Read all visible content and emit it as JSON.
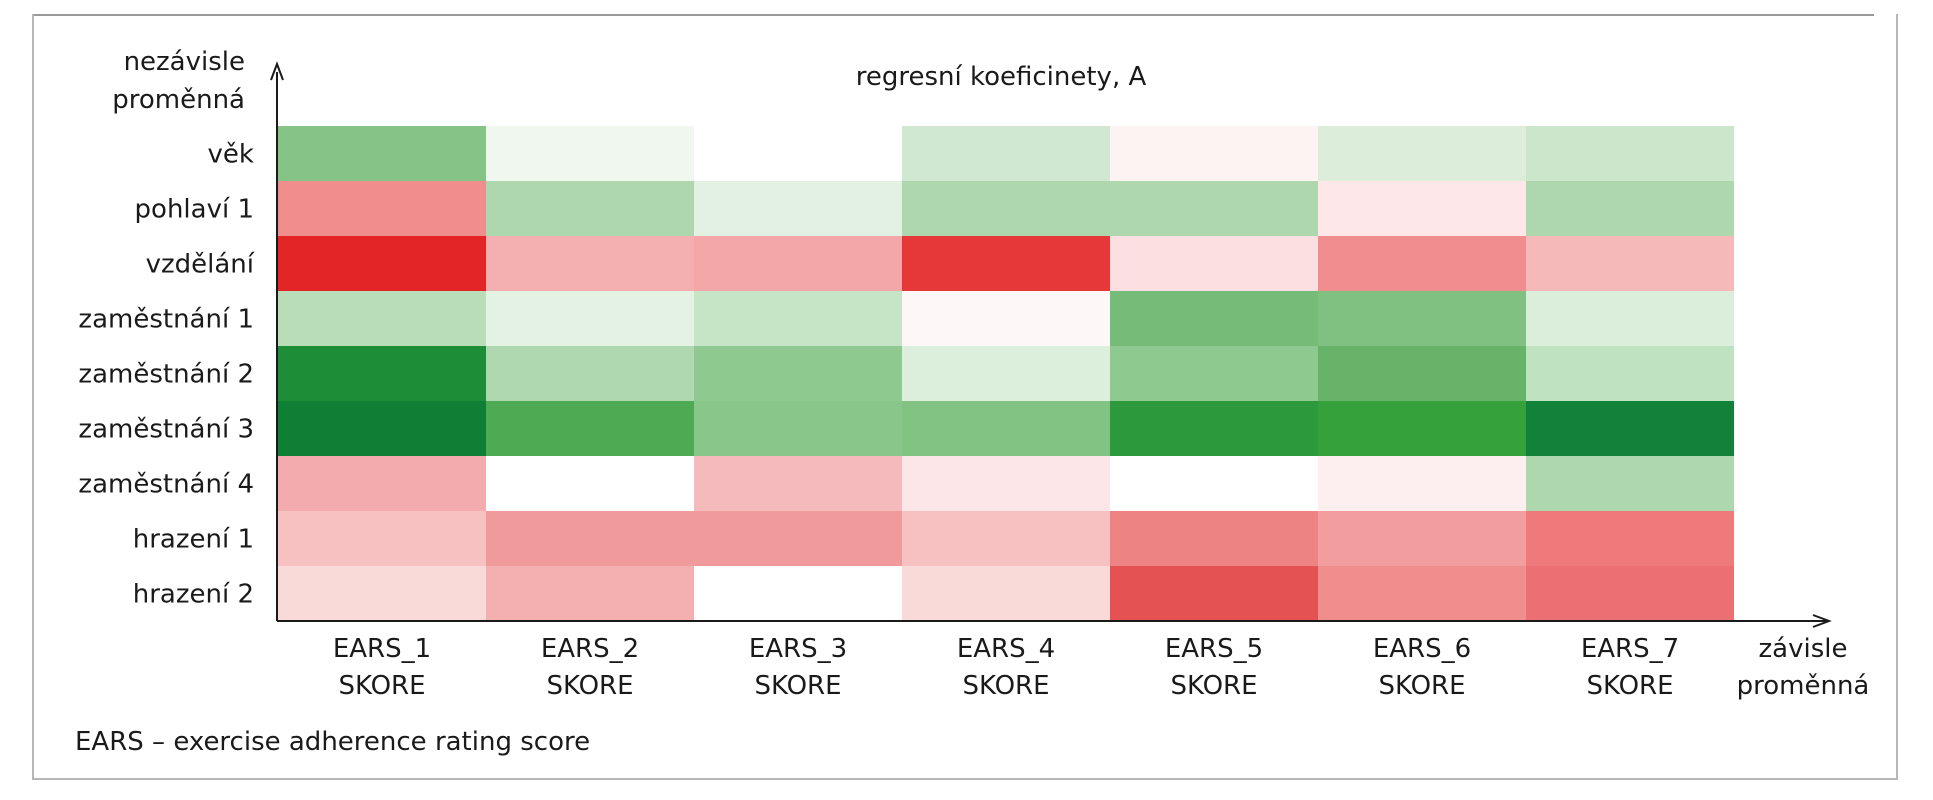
{
  "chart_data": {
    "type": "heatmap",
    "title": "regresní koeficinety, A",
    "ylabel": [
      "nezávisle",
      "proměnná"
    ],
    "xlabel": [
      "závisle",
      "proměnná"
    ],
    "rows": [
      "věk",
      "pohlaví 1",
      "vzdělání",
      "zaměstnání 1",
      "zaměstnání 2",
      "zaměstnání 3",
      "zaměstnání 4",
      "hrazení 1",
      "hrazení 2"
    ],
    "columns": [
      {
        "line1": "EARS_1",
        "line2": "SKORE"
      },
      {
        "line1": "EARS_2",
        "line2": "SKORE"
      },
      {
        "line1": "EARS_3",
        "line2": "SKORE"
      },
      {
        "line1": "EARS_4",
        "line2": "SKORE"
      },
      {
        "line1": "EARS_5",
        "line2": "SKORE"
      },
      {
        "line1": "EARS_6",
        "line2": "SKORE"
      },
      {
        "line1": "EARS_7",
        "line2": "SKORE"
      }
    ],
    "colors": [
      [
        "#85c386",
        "#eff7ef",
        "#ffffff",
        "#d0e8d1",
        "#fef3f3",
        "#dcedd9",
        "#cbe6cb"
      ],
      [
        "#f08e8e",
        "#aed7ae",
        "#e3f1e3",
        "#aed7ae",
        "#aed7ae",
        "#fde7e8",
        "#aed7ae"
      ],
      [
        "#e42526",
        "#f4afb0",
        "#f3a7a8",
        "#e73839",
        "#fcdfe0",
        "#f08d8e",
        "#f5b9ba"
      ],
      [
        "#b9ddb9",
        "#e4f2e4",
        "#c6e4c6",
        "#fef7f7",
        "#77bb78",
        "#80c081",
        "#dbeedb"
      ],
      [
        "#1d8d37",
        "#b0d8b0",
        "#8ec98f",
        "#dcefdc",
        "#8ec98f",
        "#67b36a",
        "#bfe2c0"
      ],
      [
        "#0f7f35",
        "#4eab54",
        "#89c68a",
        "#82c283",
        "#2c9a3c",
        "#35a13b",
        "#12823a"
      ],
      [
        "#f4abad",
        "#ffffff",
        "#f5babc",
        "#fce6e7",
        "#ffffff",
        "#fdeeef",
        "#aed7ae"
      ],
      [
        "#f7c1c2",
        "#f19a9c",
        "#f19a9c",
        "#f7c1c2",
        "#ee8383",
        "#f29e9f",
        "#ee7a7c"
      ],
      [
        "#fad9d9",
        "#f4b0b1",
        "#ffffff",
        "#fad9d9",
        "#e45253",
        "#f08e8e",
        "#ec7073"
      ]
    ]
  },
  "footnote": "EARS – exercise adherence rating score"
}
